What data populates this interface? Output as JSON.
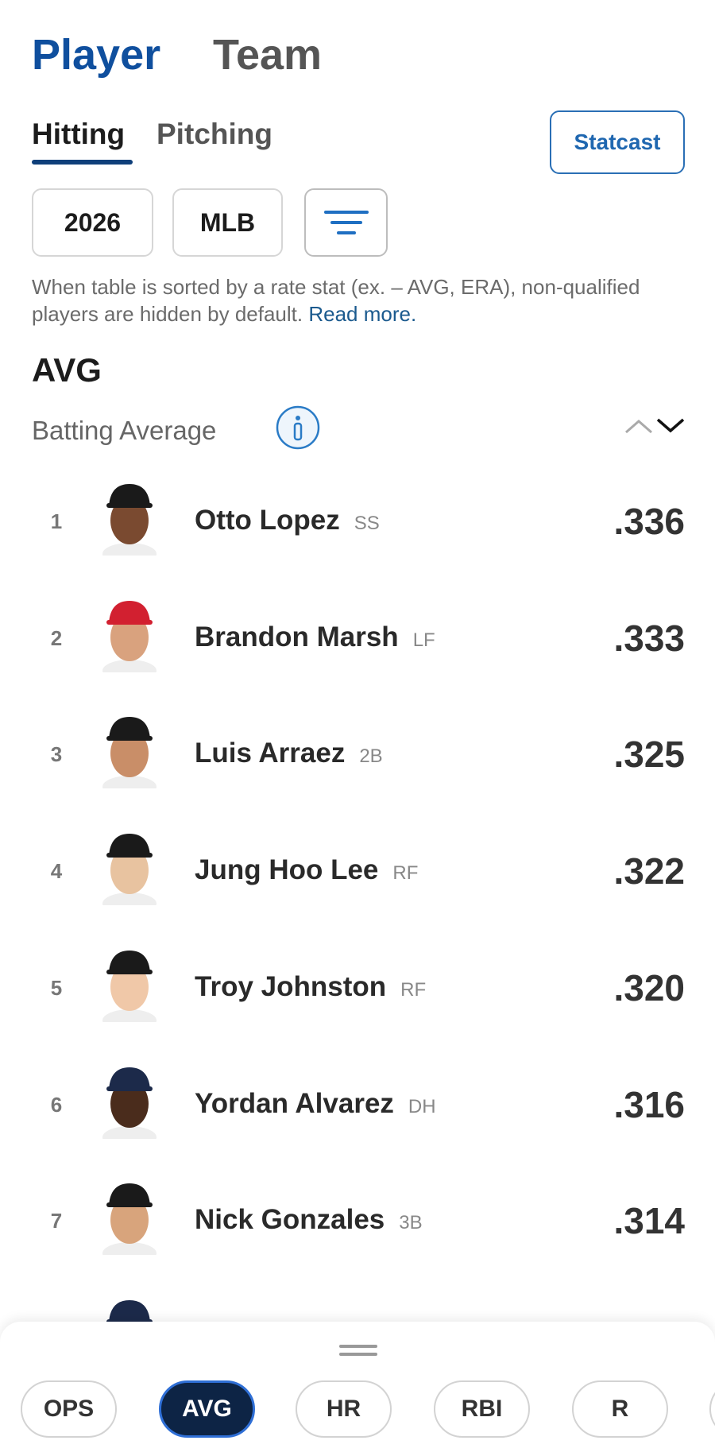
{
  "header": {
    "tabs": [
      "Player",
      "Team"
    ],
    "subtabs": [
      "Hitting",
      "Pitching"
    ],
    "statcast": "Statcast",
    "filters": [
      "2026",
      "MLB"
    ],
    "note": "When table is sorted by a rate stat (ex. – AVG, ERA), non-qualified players are hidden by default.",
    "note_link": "Read more."
  },
  "stat": {
    "abbr": "AVG",
    "name": "Batting Average"
  },
  "rows": [
    {
      "rank": "1",
      "name": "Otto Lopez",
      "position": "SS",
      "value": ".336"
    },
    {
      "rank": "2",
      "name": "Brandon Marsh",
      "position": "LF",
      "value": ".333"
    },
    {
      "rank": "3",
      "name": "Luis Arraez",
      "position": "2B",
      "value": ".325"
    },
    {
      "rank": "4",
      "name": "Jung Hoo Lee",
      "position": "RF",
      "value": ".322"
    },
    {
      "rank": "5",
      "name": "Troy Johnston",
      "position": "RF",
      "value": ".320"
    },
    {
      "rank": "6",
      "name": "Yordan Alvarez",
      "position": "DH",
      "value": ".316"
    },
    {
      "rank": "7",
      "name": "Nick Gonzales",
      "position": "3B",
      "value": ".314"
    }
  ],
  "stat_pills": [
    "OPS",
    "AVG",
    "HR",
    "RBI",
    "R"
  ],
  "active_pill": 1
}
